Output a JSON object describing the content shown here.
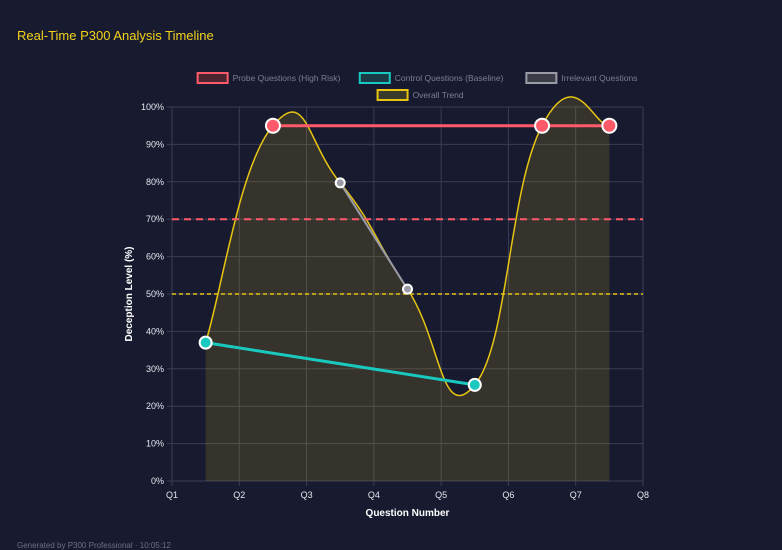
{
  "header": {
    "title": "Real-Time P300 Analysis Timeline"
  },
  "footer": {
    "text": "Generated by P300 Professional · 10:05:12"
  },
  "chart_data": {
    "type": "line",
    "xlabel": "Question Number",
    "ylabel": "Deception Level (%)",
    "x_ticks": [
      "Q1",
      "Q2",
      "Q3",
      "Q4",
      "Q5",
      "Q6",
      "Q7",
      "Q8"
    ],
    "y_ticks": [
      "0%",
      "10%",
      "20%",
      "30%",
      "40%",
      "50%",
      "60%",
      "70%",
      "80%",
      "90%",
      "100%"
    ],
    "xlim": [
      1,
      8
    ],
    "ylim": [
      0,
      100
    ],
    "grid": true,
    "legend_placement": "top",
    "series": [
      {
        "name": "Probe Questions (High Risk)",
        "color": "#ff5a6a",
        "x": [
          2.5,
          6.5,
          7.5
        ],
        "y": [
          95,
          95,
          95
        ]
      },
      {
        "name": "Control Questions (Baseline)",
        "color": "#19c9c0",
        "x": [
          1.5,
          5.5
        ],
        "y": [
          37,
          25.7
        ]
      },
      {
        "name": "Irrelevant Questions",
        "color": "#9a9ba6",
        "x": [
          3.5,
          4.5
        ],
        "y": [
          79.7,
          51.3
        ]
      },
      {
        "name": "Overall Trend",
        "color": "#e8c511",
        "fill": true,
        "x": [
          1.5,
          2.5,
          3.5,
          4.5,
          5.5,
          6.5,
          7.5
        ],
        "y": [
          37,
          95,
          79.7,
          51.3,
          25.7,
          95,
          95
        ]
      }
    ],
    "thresholds": [
      {
        "y": 70,
        "color": "#ff5a6a",
        "style": "dashed"
      },
      {
        "y": 50,
        "color": "#e8c511",
        "style": "dashed"
      }
    ]
  }
}
